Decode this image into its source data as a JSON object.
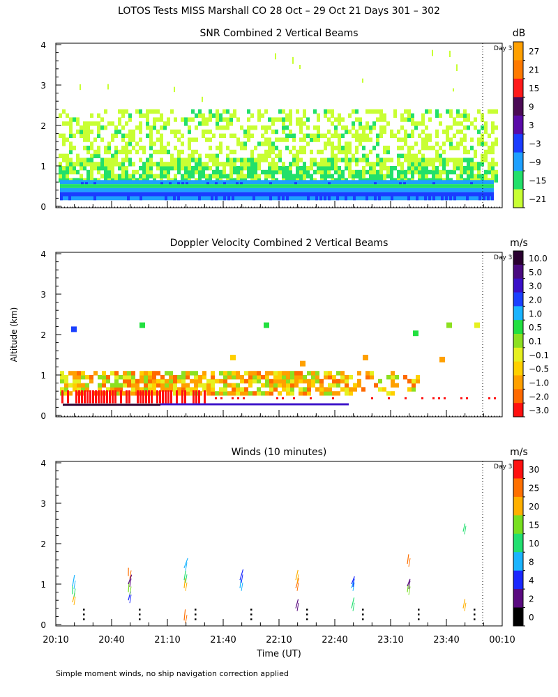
{
  "figure": {
    "title": "LOTOS Tests MISS Marshall CO  28 Oct – 29 Oct 21 Days 301 – 302",
    "ylabel": "Altitude (km)",
    "xlabel": "Time (UT)",
    "footnote": "Simple moment winds, no ship navigation correction applied",
    "day_marker": "Day 3"
  },
  "chart_data": [
    {
      "type": "heatmap",
      "title": "SNR Combined 2 Vertical Beams",
      "units": "dB",
      "ylim": [
        0,
        4
      ],
      "yticks": [
        "0",
        "1",
        "2",
        "3",
        "4"
      ],
      "colorbar": {
        "labels": [
          "27",
          "21",
          "15",
          "9",
          "3",
          "−3",
          "−9",
          "−15",
          "−21"
        ],
        "colors": [
          "#ffa000",
          "#ff7a00",
          "#ff1a1a",
          "#4b0a55",
          "#5a0aa8",
          "#1a3cff",
          "#1ea0ff",
          "#22e06a",
          "#c8ff33"
        ]
      }
    },
    {
      "type": "heatmap",
      "title": "Doppler Velocity Combined 2 Vertical Beams",
      "units": "m/s",
      "ylim": [
        0,
        4
      ],
      "yticks": [
        "0",
        "1",
        "2",
        "3",
        "4"
      ],
      "colorbar": {
        "labels": [
          "10.0",
          "5.0",
          "3.0",
          "2.0",
          "1.0",
          "0.5",
          "0.1",
          "−0.1",
          "−0.5",
          "−1.0",
          "−2.0",
          "−3.0"
        ],
        "colors": [
          "#2a0030",
          "#4a0a80",
          "#3a10c8",
          "#1a40ff",
          "#1ab4ff",
          "#22e040",
          "#8ce020",
          "#e6f020",
          "#ffd000",
          "#ffa000",
          "#ff6a00",
          "#ff1010"
        ]
      }
    },
    {
      "type": "scatter",
      "title": "Winds (10 minutes)",
      "units": "m/s",
      "ylim": [
        0,
        4
      ],
      "yticks": [
        "0",
        "1",
        "2",
        "3",
        "4"
      ],
      "xtick_labels": [
        "20:10",
        "20:40",
        "21:10",
        "21:40",
        "22:10",
        "22:40",
        "23:10",
        "23:40",
        "00:10"
      ],
      "colorbar": {
        "labels": [
          "30",
          "25",
          "20",
          "15",
          "10",
          "8",
          "4",
          "2",
          "0"
        ],
        "colors": [
          "#ff1010",
          "#ff7000",
          "#ffb000",
          "#78e020",
          "#22e070",
          "#1ab4ff",
          "#1a28ff",
          "#5a0a80",
          "#000000"
        ]
      },
      "wind_profiles": [
        {
          "time": "20:25",
          "heights_km": [
            0.55,
            0.75,
            0.95
          ]
        },
        {
          "time": "20:55",
          "heights_km": [
            0.6,
            0.8,
            1.0,
            1.2
          ]
        },
        {
          "time": "21:25",
          "heights_km": [
            0.1,
            0.9,
            1.1,
            1.4
          ]
        },
        {
          "time": "21:55",
          "heights_km": [
            0.9,
            1.1
          ]
        },
        {
          "time": "22:25",
          "heights_km": [
            0.4,
            0.9,
            1.1
          ]
        },
        {
          "time": "22:55",
          "heights_km": [
            0.4,
            0.9,
            1.0
          ]
        },
        {
          "time": "23:25",
          "heights_km": [
            0.8,
            0.95,
            1.5
          ]
        },
        {
          "time": "23:55",
          "heights_km": [
            0.4,
            2.3
          ]
        }
      ]
    }
  ]
}
